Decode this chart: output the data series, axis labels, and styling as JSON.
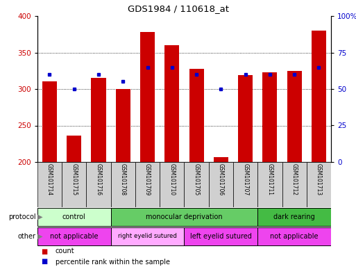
{
  "title": "GDS1984 / 110618_at",
  "samples": [
    "GSM101714",
    "GSM101715",
    "GSM101716",
    "GSM101708",
    "GSM101709",
    "GSM101710",
    "GSM101705",
    "GSM101706",
    "GSM101707",
    "GSM101711",
    "GSM101712",
    "GSM101713"
  ],
  "counts": [
    310,
    236,
    315,
    300,
    378,
    360,
    328,
    207,
    319,
    323,
    325,
    380
  ],
  "percentile_ranks": [
    60,
    50,
    60,
    55,
    65,
    65,
    60,
    50,
    60,
    60,
    60,
    65
  ],
  "ylim_left": [
    200,
    400
  ],
  "ylim_right": [
    0,
    100
  ],
  "yticks_left": [
    200,
    250,
    300,
    350,
    400
  ],
  "yticks_right": [
    0,
    25,
    50,
    75,
    100
  ],
  "bar_color": "#cc0000",
  "dot_color": "#0000cc",
  "protocol_groups": [
    {
      "label": "control",
      "start": 0,
      "end": 3,
      "color": "#ccffcc"
    },
    {
      "label": "monocular deprivation",
      "start": 3,
      "end": 9,
      "color": "#66cc66"
    },
    {
      "label": "dark rearing",
      "start": 9,
      "end": 12,
      "color": "#44bb44"
    }
  ],
  "other_groups": [
    {
      "label": "not applicable",
      "start": 0,
      "end": 3,
      "color": "#ee44ee"
    },
    {
      "label": "right eyelid sutured",
      "start": 3,
      "end": 6,
      "color": "#ffaaff"
    },
    {
      "label": "left eyelid sutured",
      "start": 6,
      "end": 9,
      "color": "#ee44ee"
    },
    {
      "label": "not applicable",
      "start": 9,
      "end": 12,
      "color": "#ee44ee"
    }
  ],
  "bg_color": "#ffffff",
  "tick_label_color_left": "#cc0000",
  "tick_label_color_right": "#0000cc",
  "label_bg": "#d0d0d0"
}
